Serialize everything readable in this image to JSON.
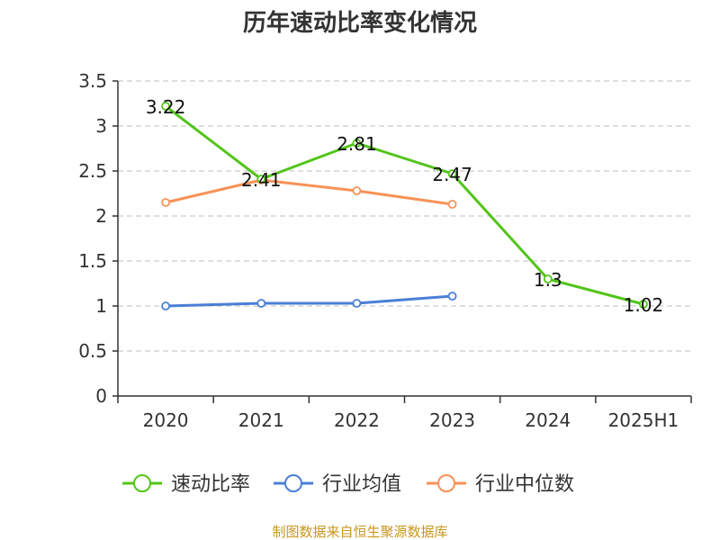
{
  "title": "历年速动比率变化情况",
  "source": "制图数据来自恒生聚源数据库",
  "colors": {
    "series": [
      "#52c41a",
      "#4a7fd6",
      "#f79256"
    ],
    "source": "#c8961e",
    "grid": "#cccccc",
    "axis": "#333333"
  },
  "chart_data": {
    "type": "line",
    "categories": [
      "2020",
      "2021",
      "2022",
      "2023",
      "2024",
      "2025H1"
    ],
    "ylim": [
      0,
      3.5
    ],
    "yticks": [
      "0",
      "0.5",
      "1",
      "1.5",
      "2",
      "2.5",
      "3",
      "3.5"
    ],
    "grid": true,
    "legend_position": "bottom",
    "series": [
      {
        "name": "速动比率",
        "values": [
          3.22,
          2.41,
          2.81,
          2.47,
          1.3,
          1.02
        ],
        "labels": [
          "3.22",
          "2.41",
          "2.81",
          "2.47",
          "1.3",
          "1.02"
        ]
      },
      {
        "name": "行业均值",
        "values": [
          1.0,
          1.03,
          1.03,
          1.11,
          null,
          null
        ]
      },
      {
        "name": "行业中位数",
        "values": [
          2.15,
          2.4,
          2.28,
          2.13,
          null,
          null
        ]
      }
    ]
  }
}
